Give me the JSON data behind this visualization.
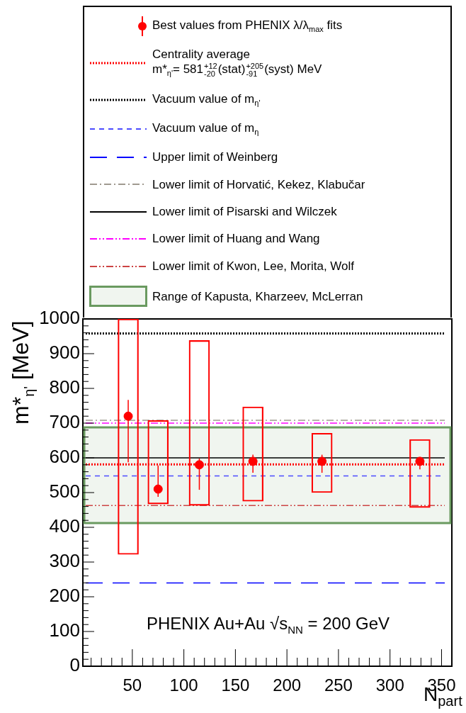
{
  "chart_data": {
    "type": "scatter",
    "ylabel": "m*$_{η'}$ [MeV]",
    "xlabel": "N$_{part}$",
    "xlim": [
      2,
      360
    ],
    "xticks": [
      50,
      100,
      150,
      200,
      250,
      300,
      350
    ],
    "ylim": [
      0,
      1000
    ],
    "yticks": [
      0,
      100,
      200,
      300,
      400,
      500,
      600,
      700,
      800,
      900,
      1000
    ],
    "grid": false,
    "legend": "top",
    "marker": "circle",
    "series": [
      {
        "type": "scatter",
        "name": "Best values from PHENIX λ/λ$_{max}$ fits",
        "color": "#ff0000",
        "x": [
          46,
          75,
          115,
          167,
          234,
          329
        ],
        "values": [
          720,
          510,
          580,
          590,
          590,
          590
        ],
        "errors": [
          [
            587,
            767
          ],
          [
            488,
            578
          ],
          [
            508,
            598
          ],
          [
            557,
            609
          ],
          [
            557,
            609
          ],
          [
            567,
            602
          ]
        ]
      },
      {
        "type": "bar",
        "color": "#ff0000",
        "x": [
          46,
          75,
          115,
          167,
          234,
          329
        ],
        "base": [
          322,
          467,
          463,
          475,
          500,
          457
        ],
        "values": [
          678,
          241,
          475,
          272,
          171,
          196
        ]
      }
    ],
    "ref_lines": [
      {
        "axis": "y",
        "value": 581,
        "label": "Centrality average\nm*$_{η'}$= 581$^{+12}$$_{-20}$(stat)$^{+205}$$_{-91}$(syst) MeV",
        "color": "#ff0000",
        "line_style": "dotted"
      },
      {
        "axis": "y",
        "value": 958,
        "label": "Vacuum value of m$_{η'}$",
        "color": "#000000",
        "line_style": "dotted"
      },
      {
        "axis": "y",
        "value": 548,
        "label": "Vacuum value of m$_{η}$",
        "color": "#4b4bff",
        "line_style": "dashed"
      },
      {
        "axis": "y",
        "value": 240,
        "label": "Upper limit of Weinberg",
        "color": "#0000ff",
        "line_style": "longdashed"
      },
      {
        "axis": "y",
        "value": 708,
        "label": "Lower limit of Horvatić, Kekez, Klabučar",
        "color": "#a09a90",
        "line_style": "dashdot"
      },
      {
        "axis": "y",
        "value": 600,
        "label": "Lower limit of Pisarski and Wilczek",
        "color": "#000000",
        "line_style": "solid"
      },
      {
        "axis": "y",
        "value": 700,
        "label": "Lower limit of Huang and Wang",
        "color": "#ff00ff",
        "line_style": "dashdotdot"
      },
      {
        "axis": "y",
        "value": 463,
        "label": "Lower limit of Kwon, Lee, Morita, Wolf",
        "color": "#cc4444",
        "line_style": "dashdotdot"
      }
    ],
    "bands": [
      {
        "axis": "y",
        "from": 412,
        "to": 688,
        "label": "Range of Kapusta, Kharzeev, McLerran",
        "color": "#6a9a60"
      }
    ],
    "annotations": [
      "PHENIX Au+Au √s$_{NN}$ = 200 GeV"
    ]
  }
}
